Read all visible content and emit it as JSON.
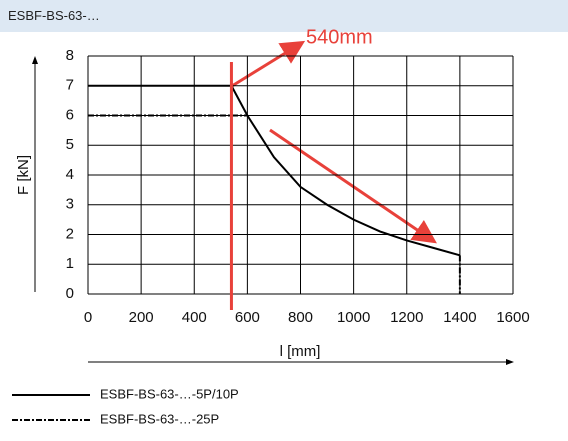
{
  "chart_data": {
    "type": "line",
    "title": "ESBF-BS-63-…",
    "x_label": "l [mm]",
    "y_label": "F [kN]",
    "xlim": [
      0,
      1600
    ],
    "xticks": [
      0,
      200,
      400,
      600,
      800,
      1000,
      1200,
      1400,
      1600
    ],
    "ylim": [
      0,
      8
    ],
    "yticks": [
      0,
      1,
      2,
      3,
      4,
      5,
      6,
      7,
      8
    ],
    "grid": true,
    "series": [
      {
        "name": "ESBF-BS-63-…-5P/10P",
        "color": "#000000",
        "dash": "solid",
        "x": [
          0,
          540,
          600,
          700,
          800,
          900,
          1000,
          1100,
          1200,
          1300,
          1400
        ],
        "values": [
          7,
          7,
          6,
          4.6,
          3.6,
          3.0,
          2.5,
          2.1,
          1.8,
          1.55,
          1.3
        ]
      },
      {
        "name": "ESBF-BS-63-…-25P",
        "color": "#000000",
        "dash": "dashdot",
        "x": [
          0,
          600,
          1400,
          1400,
          1400
        ],
        "values": [
          6,
          6,
          null,
          1.3,
          0
        ]
      }
    ],
    "annotation": {
      "text": "540mm",
      "x": 540,
      "color": "#e8413a"
    }
  }
}
